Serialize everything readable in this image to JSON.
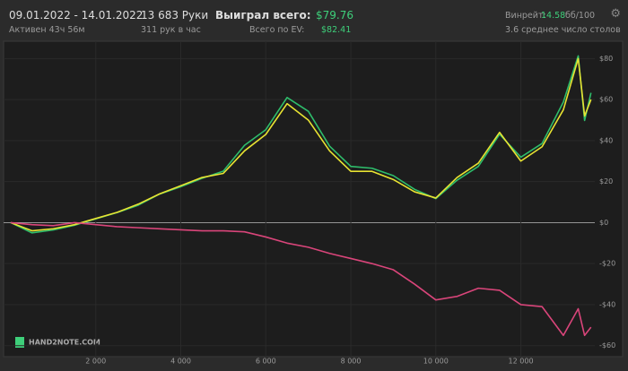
{
  "header": {
    "period": "09.01.2022 - 14.01.2022",
    "active": "Активен 43ч 56м",
    "hands": "13 683 Руки",
    "hands_per_hour": "311 рук в час",
    "won_label": "Выиграл всего:",
    "won_value": "$79.76",
    "ev_label": "Всего по EV:",
    "ev_value": "$82.41",
    "winrate_label": "Винрейт:",
    "winrate_value": "14.58",
    "winrate_unit": "бб/100",
    "tables": "3.6 среднее число столов"
  },
  "watermark": "HAND2NOTE.COM",
  "chart_data": {
    "type": "line",
    "x": [
      0,
      500,
      1000,
      1500,
      2000,
      2500,
      3000,
      3500,
      4000,
      4500,
      5000,
      5500,
      6000,
      6500,
      7000,
      7500,
      8000,
      8500,
      9000,
      9500,
      10000,
      10500,
      11000,
      11500,
      12000,
      12500,
      13000,
      13350,
      13500,
      13650
    ],
    "series": [
      {
        "color": "#2ebd6b",
        "values": [
          0,
          -5,
          -3.6,
          -1.3,
          1.8,
          4.9,
          8.5,
          13.9,
          17.5,
          21.6,
          25.1,
          37.7,
          45.3,
          61,
          54.3,
          37.3,
          27.4,
          26.5,
          22.9,
          16.2,
          11.7,
          20.7,
          27.4,
          43.1,
          31.9,
          38.6,
          58.8,
          81.3,
          49.8,
          63.3
        ]
      },
      {
        "color": "#e8e332",
        "values": [
          0,
          -4,
          -3,
          -1,
          2,
          5,
          9,
          14,
          18,
          22,
          24,
          35,
          43,
          58,
          50,
          35,
          25,
          25,
          21,
          15,
          12,
          22,
          29,
          44,
          30,
          37,
          55,
          80,
          52,
          60
        ]
      },
      {
        "color": "#d9457a",
        "values": [
          0,
          -1,
          -1.5,
          0,
          -1,
          -2,
          -2.5,
          -3,
          -3.5,
          -4,
          -4,
          -4.5,
          -7,
          -10,
          -12,
          -15,
          -17.5,
          -20,
          -23,
          -30,
          -37.7,
          -36,
          -32,
          -33,
          -40,
          -41,
          -55,
          -42,
          -55,
          -51
        ]
      }
    ],
    "xlim": [
      0,
      13740
    ],
    "ylim": [
      -64.5,
      86.7
    ],
    "xticks": [
      {
        "value": 2000,
        "label": "2 000"
      },
      {
        "value": 4000,
        "label": "4 000"
      },
      {
        "value": 6000,
        "label": "6 000"
      },
      {
        "value": 8000,
        "label": "8 000"
      },
      {
        "value": 10000,
        "label": "10 000"
      },
      {
        "value": 12000,
        "label": "12 000"
      }
    ],
    "yticks": [
      {
        "value": 80,
        "label": "$80"
      },
      {
        "value": 60,
        "label": "$60"
      },
      {
        "value": 40,
        "label": "$40"
      },
      {
        "value": 20,
        "label": "$20"
      },
      {
        "value": 0,
        "label": "$0"
      },
      {
        "value": -20,
        "label": "-$20"
      },
      {
        "value": -40,
        "label": "-$40"
      },
      {
        "value": -60,
        "label": "-$60"
      }
    ],
    "grid": true
  }
}
